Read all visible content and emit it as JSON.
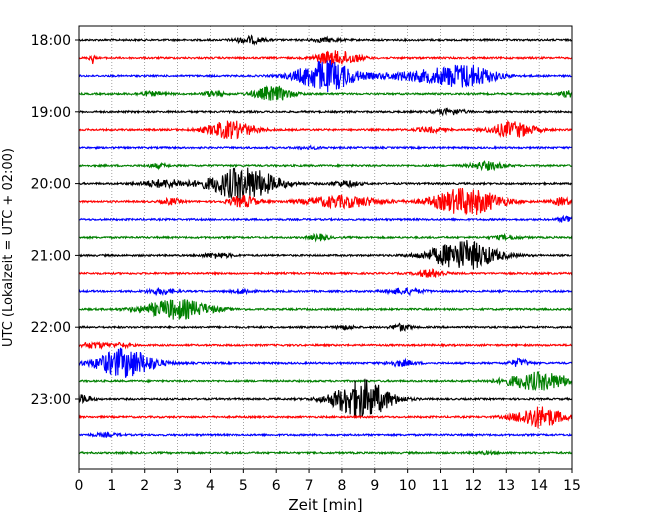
{
  "chart_data": {
    "type": "line",
    "title": "",
    "xlabel": "Zeit  [min]",
    "ylabel": "UTC (Lokalzeit = UTC + 02:00)",
    "xlim": [
      0,
      15
    ],
    "x_ticks": [
      "0",
      "1",
      "2",
      "3",
      "4",
      "5",
      "6",
      "7",
      "8",
      "9",
      "10",
      "11",
      "12",
      "13",
      "14",
      "15"
    ],
    "y_tick_labels": [
      "18:00",
      "19:00",
      "20:00",
      "21:00",
      "22:00",
      "23:00"
    ],
    "grid": "vertical dotted",
    "trace_colors": [
      "#000000",
      "#ff0000",
      "#0000ff",
      "#008000"
    ],
    "traces": [
      {
        "start": "18:00",
        "events": [
          {
            "t": 5.2,
            "amp": 0.35,
            "w": 0.3
          },
          {
            "t": 7.5,
            "amp": 0.2,
            "w": 0.3
          }
        ]
      },
      {
        "start": "18:15",
        "events": [
          {
            "t": 0.4,
            "amp": 0.6,
            "w": 0.05
          },
          {
            "t": 7.6,
            "amp": 0.6,
            "w": 0.3
          },
          {
            "t": 8.2,
            "amp": 0.5,
            "w": 0.3
          }
        ]
      },
      {
        "start": "18:30",
        "events": [
          {
            "t": 7.5,
            "amp": 1.6,
            "w": 0.6
          },
          {
            "t": 10.5,
            "amp": 0.5,
            "w": 1.0
          },
          {
            "t": 11.8,
            "amp": 1.0,
            "w": 0.6
          }
        ]
      },
      {
        "start": "18:45",
        "events": [
          {
            "t": 2.2,
            "amp": 0.2,
            "w": 0.3
          },
          {
            "t": 4.1,
            "amp": 0.3,
            "w": 0.2
          },
          {
            "t": 5.9,
            "amp": 0.75,
            "w": 0.4
          },
          {
            "t": 14.9,
            "amp": 0.3,
            "w": 0.2
          }
        ]
      },
      {
        "start": "19:00",
        "events": [
          {
            "t": 11.3,
            "amp": 0.3,
            "w": 0.3
          }
        ]
      },
      {
        "start": "19:15",
        "events": [
          {
            "t": 4.6,
            "amp": 0.9,
            "w": 0.5
          },
          {
            "t": 10.7,
            "amp": 0.25,
            "w": 0.3
          },
          {
            "t": 13.2,
            "amp": 0.8,
            "w": 0.45
          }
        ]
      },
      {
        "start": "19:30",
        "events": [
          {
            "t": 7.0,
            "amp": 0.1,
            "w": 0.3
          }
        ]
      },
      {
        "start": "19:45",
        "events": [
          {
            "t": 2.4,
            "amp": 0.2,
            "w": 0.2
          },
          {
            "t": 12.4,
            "amp": 0.4,
            "w": 0.35
          }
        ]
      },
      {
        "start": "20:00",
        "events": [
          {
            "t": 2.6,
            "amp": 0.4,
            "w": 0.5
          },
          {
            "t": 5.0,
            "amp": 1.7,
            "w": 0.7
          },
          {
            "t": 8.1,
            "amp": 0.3,
            "w": 0.3
          }
        ]
      },
      {
        "start": "20:15",
        "events": [
          {
            "t": 2.8,
            "amp": 0.3,
            "w": 0.2
          },
          {
            "t": 5.0,
            "amp": 0.6,
            "w": 0.3
          },
          {
            "t": 8.0,
            "amp": 0.6,
            "w": 0.8
          },
          {
            "t": 11.8,
            "amp": 1.4,
            "w": 0.7
          },
          {
            "t": 14.7,
            "amp": 0.4,
            "w": 0.2
          }
        ]
      },
      {
        "start": "20:30",
        "events": [
          {
            "t": 14.9,
            "amp": 0.4,
            "w": 0.2
          }
        ]
      },
      {
        "start": "20:45",
        "events": [
          {
            "t": 7.3,
            "amp": 0.3,
            "w": 0.2
          },
          {
            "t": 13.0,
            "amp": 0.2,
            "w": 0.3
          }
        ]
      },
      {
        "start": "21:00",
        "events": [
          {
            "t": 4.2,
            "amp": 0.25,
            "w": 0.3
          },
          {
            "t": 11.7,
            "amp": 1.5,
            "w": 0.7
          }
        ]
      },
      {
        "start": "21:15",
        "events": [
          {
            "t": 10.7,
            "amp": 0.4,
            "w": 0.3
          }
        ]
      },
      {
        "start": "21:30",
        "events": [
          {
            "t": 2.5,
            "amp": 0.3,
            "w": 0.3
          },
          {
            "t": 5.0,
            "amp": 0.25,
            "w": 0.2
          },
          {
            "t": 9.9,
            "amp": 0.3,
            "w": 0.4
          }
        ]
      },
      {
        "start": "21:45",
        "events": [
          {
            "t": 3.0,
            "amp": 1.0,
            "w": 0.7
          }
        ]
      },
      {
        "start": "22:00",
        "events": [
          {
            "t": 8.1,
            "amp": 0.2,
            "w": 0.2
          },
          {
            "t": 9.8,
            "amp": 0.35,
            "w": 0.2
          }
        ]
      },
      {
        "start": "22:15",
        "events": [
          {
            "t": 0.5,
            "amp": 0.3,
            "w": 0.3
          },
          {
            "t": 1.3,
            "amp": 0.2,
            "w": 0.2
          }
        ]
      },
      {
        "start": "22:30",
        "events": [
          {
            "t": 1.4,
            "amp": 1.5,
            "w": 0.6
          },
          {
            "t": 9.8,
            "amp": 0.3,
            "w": 0.3
          },
          {
            "t": 13.4,
            "amp": 0.4,
            "w": 0.2
          }
        ]
      },
      {
        "start": "22:45",
        "events": [
          {
            "t": 14.0,
            "amp": 0.9,
            "w": 0.7
          }
        ]
      },
      {
        "start": "23:00",
        "events": [
          {
            "t": 0.1,
            "amp": 0.4,
            "w": 0.2
          },
          {
            "t": 8.6,
            "amp": 2.0,
            "w": 0.6
          }
        ]
      },
      {
        "start": "23:15",
        "events": [
          {
            "t": 14.0,
            "amp": 1.1,
            "w": 0.5
          }
        ]
      },
      {
        "start": "23:30",
        "events": [
          {
            "t": 0.8,
            "amp": 0.15,
            "w": 0.3
          }
        ]
      },
      {
        "start": "23:45",
        "events": [
          {
            "t": 12.4,
            "amp": 0.1,
            "w": 0.3
          }
        ]
      }
    ]
  }
}
